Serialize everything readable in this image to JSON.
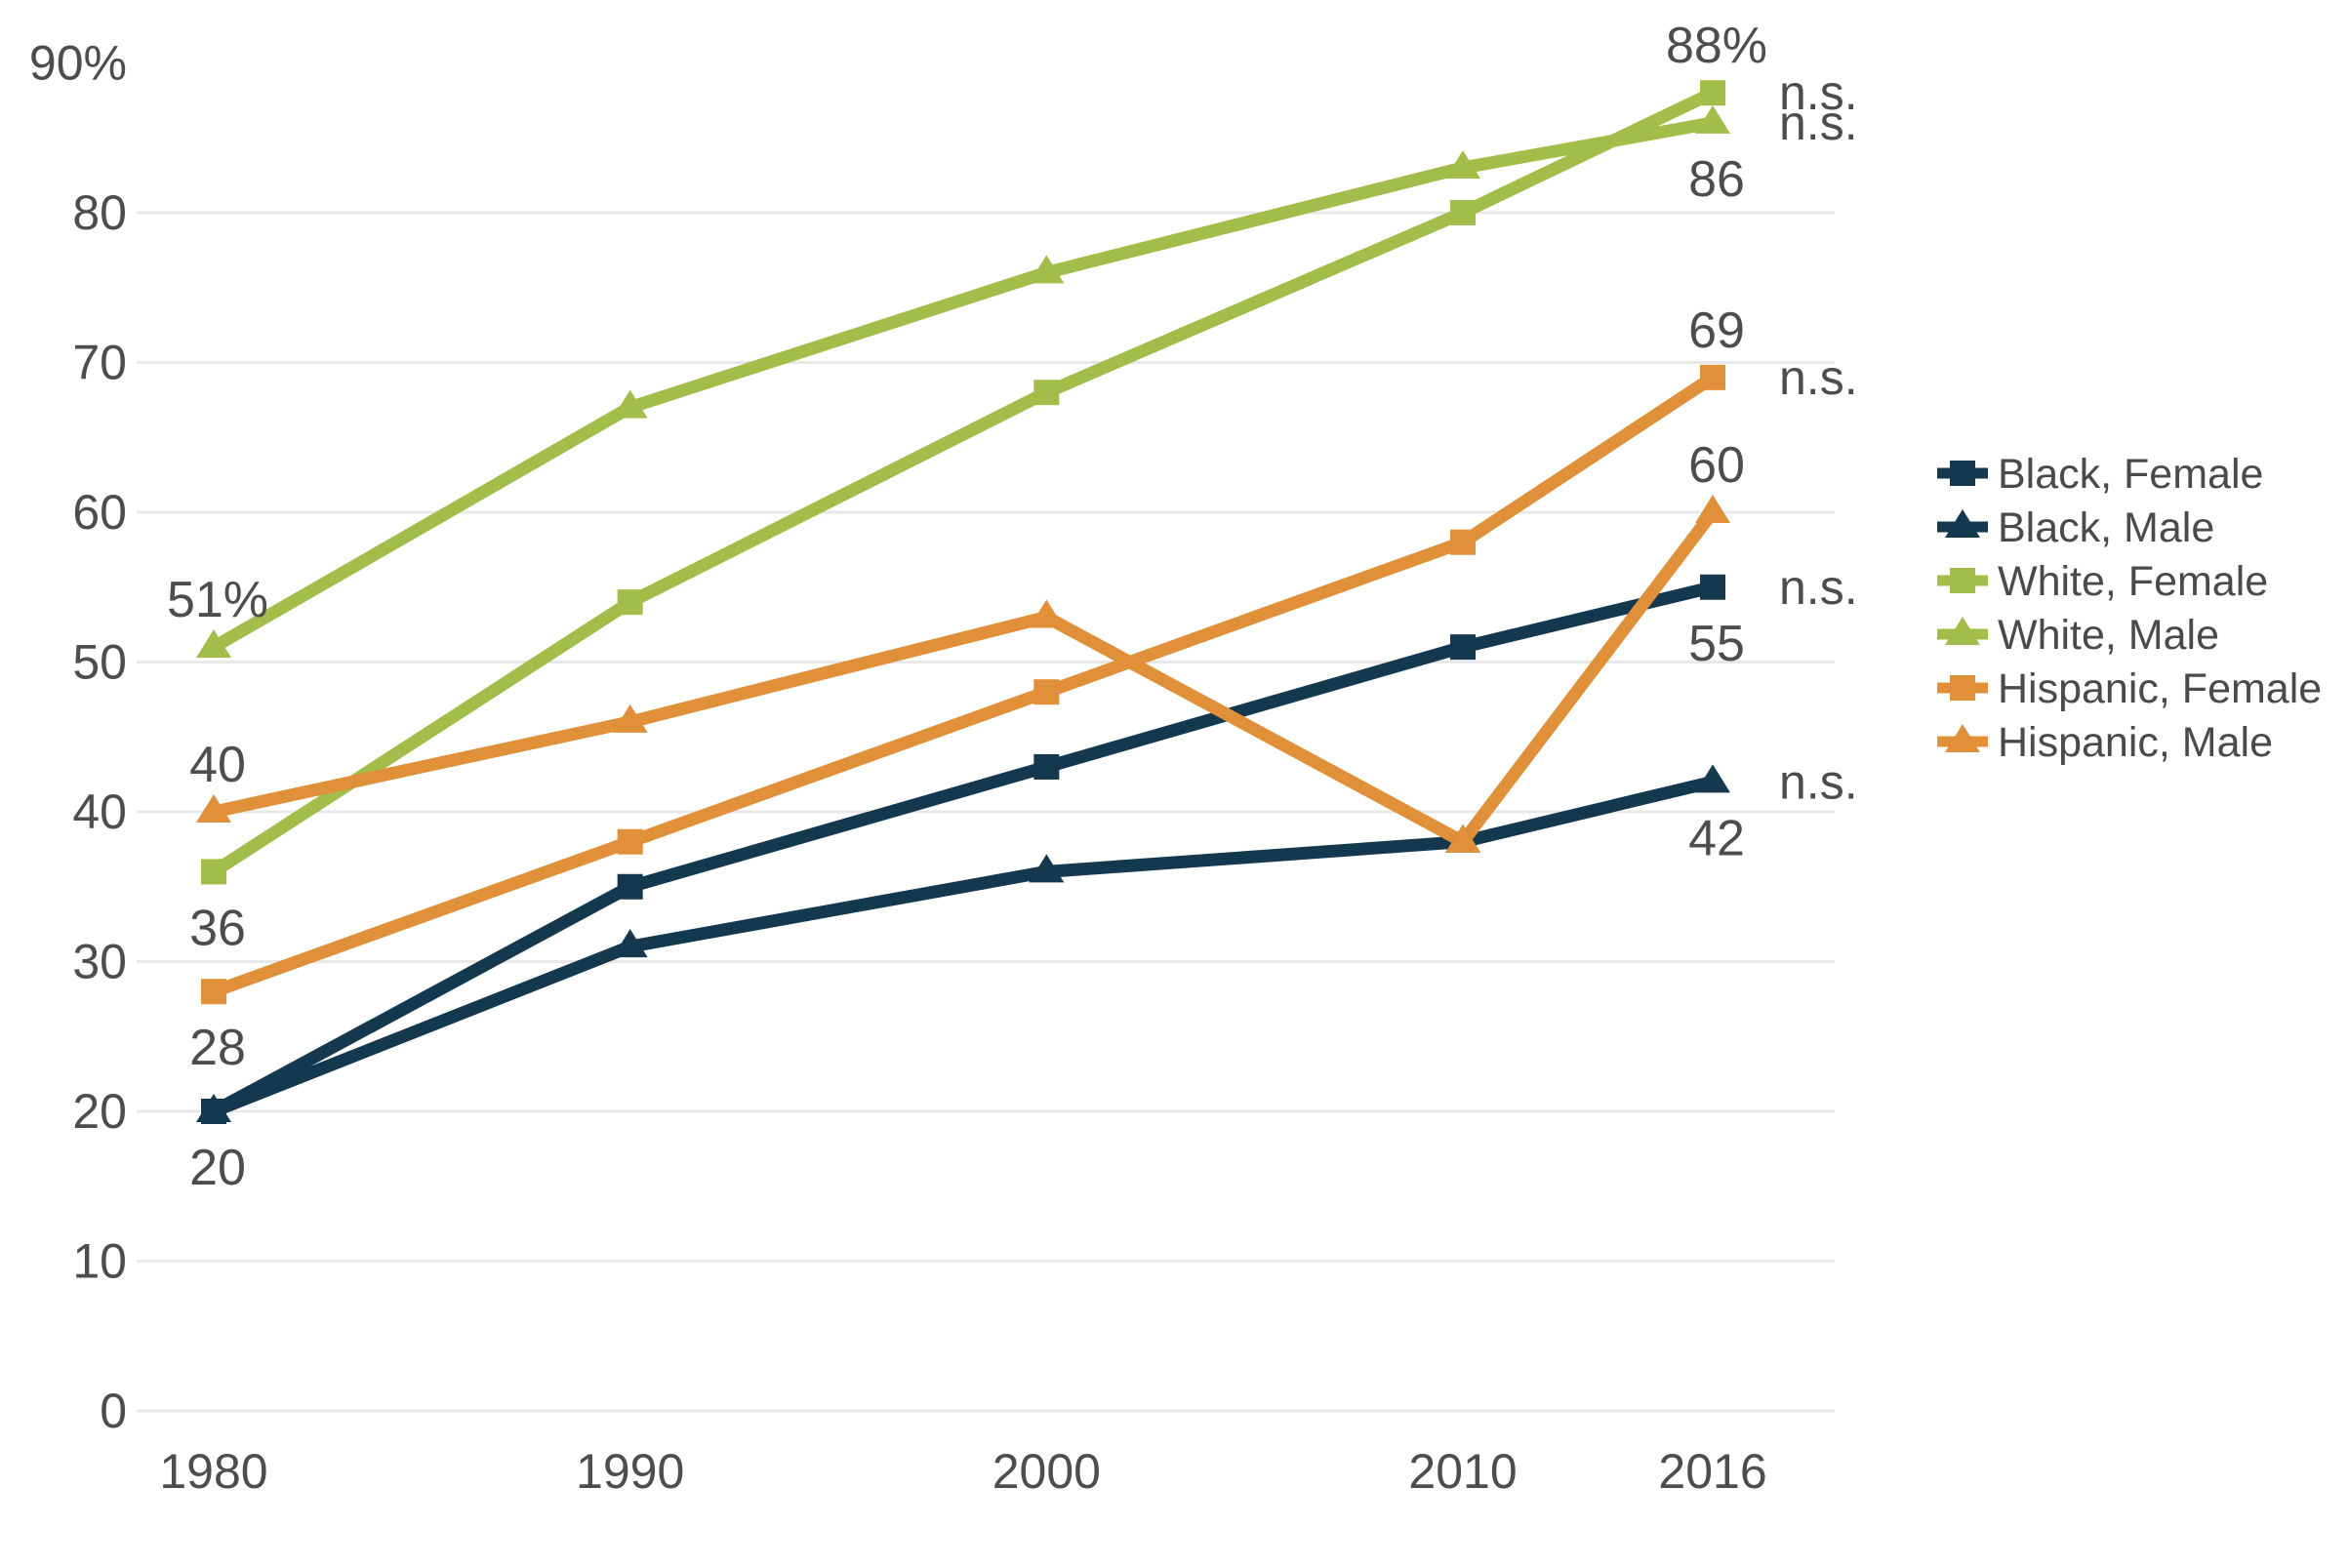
{
  "chart_data": {
    "type": "line",
    "x": [
      1980,
      1990,
      2000,
      2010,
      2016
    ],
    "x_tick_labels": [
      "1980",
      "1990",
      "2000",
      "2010",
      "2016"
    ],
    "y_ticks": [
      0,
      10,
      20,
      30,
      40,
      50,
      60,
      70,
      80,
      90
    ],
    "y_tick_labels": [
      "0",
      "10",
      "20",
      "30",
      "40",
      "50",
      "60",
      "70",
      "80",
      "90%"
    ],
    "grid_values": [
      0,
      10,
      20,
      30,
      40,
      50,
      60,
      70,
      80
    ],
    "ylim": [
      0,
      95
    ],
    "grid": "horizontal-only",
    "legend_position": "right",
    "title": "",
    "xlabel": "",
    "ylabel": "",
    "series": [
      {
        "name": "Black, Female",
        "marker": "square",
        "color": "#14384e",
        "values": [
          20,
          35,
          43,
          51,
          55
        ]
      },
      {
        "name": "Black, Male",
        "marker": "triangle",
        "color": "#14384e",
        "values": [
          20,
          31,
          36,
          38,
          42
        ]
      },
      {
        "name": "White, Female",
        "marker": "square",
        "color": "#a2bd49",
        "values": [
          36,
          54,
          68,
          80,
          88
        ]
      },
      {
        "name": "White, Male",
        "marker": "triangle",
        "color": "#a2bd49",
        "values": [
          51,
          67,
          76,
          83,
          86
        ]
      },
      {
        "name": "Hispanic, Female",
        "marker": "square",
        "color": "#df9038",
        "values": [
          28,
          38,
          48,
          58,
          69
        ]
      },
      {
        "name": "Hispanic, Male",
        "marker": "triangle",
        "color": "#df9038",
        "values": [
          40,
          46,
          53,
          38,
          60
        ]
      }
    ],
    "point_labels": [
      {
        "series": "White, Male",
        "year": 1980,
        "text": "51%",
        "position": "above"
      },
      {
        "series": "Hispanic, Male",
        "year": 1980,
        "text": "40",
        "position": "above"
      },
      {
        "series": "White, Female",
        "year": 1980,
        "text": "36",
        "position": "below"
      },
      {
        "series": "Hispanic, Female",
        "year": 1980,
        "text": "28",
        "position": "below"
      },
      {
        "series": "Black, Female",
        "year": 1980,
        "text": "20",
        "position": "below"
      },
      {
        "series": "White, Female",
        "year": 2016,
        "text": "88%",
        "position": "above"
      },
      {
        "series": "White, Male",
        "year": 2016,
        "text": "86",
        "position": "below"
      },
      {
        "series": "Hispanic, Female",
        "year": 2016,
        "text": "69",
        "position": "above"
      },
      {
        "series": "Hispanic, Male",
        "year": 2016,
        "text": "60",
        "position": "above"
      },
      {
        "series": "Black, Female",
        "year": 2016,
        "text": "55",
        "position": "below"
      },
      {
        "series": "Black, Male",
        "year": 2016,
        "text": "42",
        "position": "below"
      }
    ],
    "annotations": [
      {
        "text": "n.s.",
        "series": "White, Female"
      },
      {
        "text": "n.s.",
        "series": "White, Male"
      },
      {
        "text": "n.s.",
        "series": "Hispanic, Female"
      },
      {
        "text": "n.s.",
        "series": "Black, Female"
      },
      {
        "text": "n.s.",
        "series": "Black, Male"
      }
    ],
    "colors": {
      "black_series": "#14384e",
      "white_series": "#a2bd49",
      "hispanic_series": "#df9038",
      "tick_text": "#4d4d4d",
      "data_label_text": "#4d4d4d",
      "annotation_text": "#4d4d4d",
      "legend_text": "#4a4a4a",
      "gridline": "#e8e8e8",
      "background": "#ffffff"
    }
  }
}
